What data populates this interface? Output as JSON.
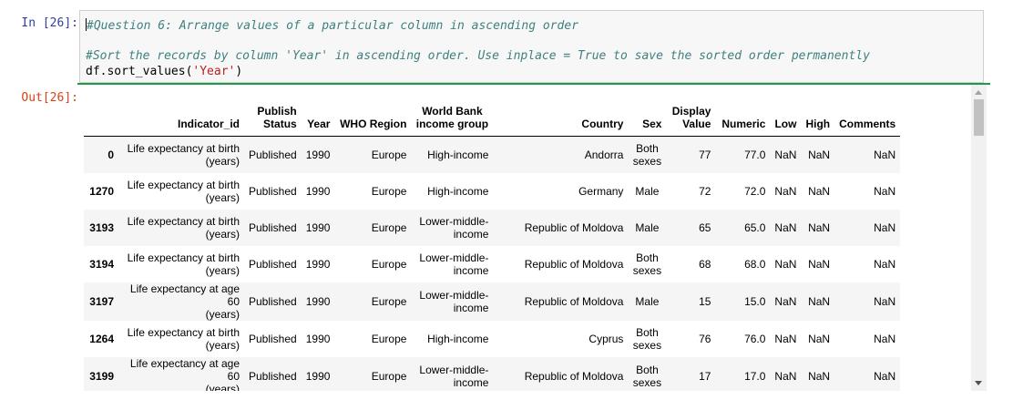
{
  "cell": {
    "in_prompt": "In [26]:",
    "out_prompt": "Out[26]:",
    "line1": "#Question 6: Arrange values of a particular column in ascending order",
    "line3": "#Sort the records by column 'Year' in ascending order. Use inplace = True to save the sorted order permanently",
    "line4_prefix": "df.sort_values(",
    "line4_string": "'Year'",
    "line4_suffix": ")"
  },
  "table": {
    "headers": {
      "indicator_id": "Indicator_id",
      "publish_status_1": "Publish",
      "publish_status_2": "Status",
      "year": "Year",
      "who_region": "WHO Region",
      "world_bank_1": "World Bank",
      "world_bank_2": "income group",
      "country": "Country",
      "sex": "Sex",
      "display_value_1": "Display",
      "display_value_2": "Value",
      "numeric": "Numeric",
      "low": "Low",
      "high": "High",
      "comments": "Comments"
    },
    "rows": [
      {
        "index": "0",
        "indicator_1": "Life expectancy at birth",
        "indicator_2": "(years)",
        "status": "Published",
        "year": "1990",
        "region": "Europe",
        "income_1": "High-income",
        "income_2": "",
        "country": "Andorra",
        "sex_1": "Both",
        "sex_2": "sexes",
        "display": "77",
        "numeric": "77.0",
        "low": "NaN",
        "high": "NaN",
        "comments": "NaN"
      },
      {
        "index": "1270",
        "indicator_1": "Life expectancy at birth",
        "indicator_2": "(years)",
        "status": "Published",
        "year": "1990",
        "region": "Europe",
        "income_1": "High-income",
        "income_2": "",
        "country": "Germany",
        "sex_1": "Male",
        "sex_2": "",
        "display": "72",
        "numeric": "72.0",
        "low": "NaN",
        "high": "NaN",
        "comments": "NaN"
      },
      {
        "index": "3193",
        "indicator_1": "Life expectancy at birth",
        "indicator_2": "(years)",
        "status": "Published",
        "year": "1990",
        "region": "Europe",
        "income_1": "Lower-middle-",
        "income_2": "income",
        "country": "Republic of Moldova",
        "sex_1": "Male",
        "sex_2": "",
        "display": "65",
        "numeric": "65.0",
        "low": "NaN",
        "high": "NaN",
        "comments": "NaN"
      },
      {
        "index": "3194",
        "indicator_1": "Life expectancy at birth",
        "indicator_2": "(years)",
        "status": "Published",
        "year": "1990",
        "region": "Europe",
        "income_1": "Lower-middle-",
        "income_2": "income",
        "country": "Republic of Moldova",
        "sex_1": "Both",
        "sex_2": "sexes",
        "display": "68",
        "numeric": "68.0",
        "low": "NaN",
        "high": "NaN",
        "comments": "NaN"
      },
      {
        "index": "3197",
        "indicator_1": "Life expectancy at age 60",
        "indicator_2": "(years)",
        "status": "Published",
        "year": "1990",
        "region": "Europe",
        "income_1": "Lower-middle-",
        "income_2": "income",
        "country": "Republic of Moldova",
        "sex_1": "Male",
        "sex_2": "",
        "display": "15",
        "numeric": "15.0",
        "low": "NaN",
        "high": "NaN",
        "comments": "NaN"
      },
      {
        "index": "1264",
        "indicator_1": "Life expectancy at birth",
        "indicator_2": "(years)",
        "status": "Published",
        "year": "1990",
        "region": "Europe",
        "income_1": "High-income",
        "income_2": "",
        "country": "Cyprus",
        "sex_1": "Both",
        "sex_2": "sexes",
        "display": "76",
        "numeric": "76.0",
        "low": "NaN",
        "high": "NaN",
        "comments": "NaN"
      },
      {
        "index": "3199",
        "indicator_1": "Life expectancy at age 60",
        "indicator_2": "(years)",
        "status": "Published",
        "year": "1990",
        "region": "Europe",
        "income_1": "Lower-middle-",
        "income_2": "income",
        "country": "Republic of Moldova",
        "sex_1": "Both",
        "sex_2": "sexes",
        "display": "17",
        "numeric": "17.0",
        "low": "NaN",
        "high": "NaN",
        "comments": "NaN"
      }
    ]
  }
}
